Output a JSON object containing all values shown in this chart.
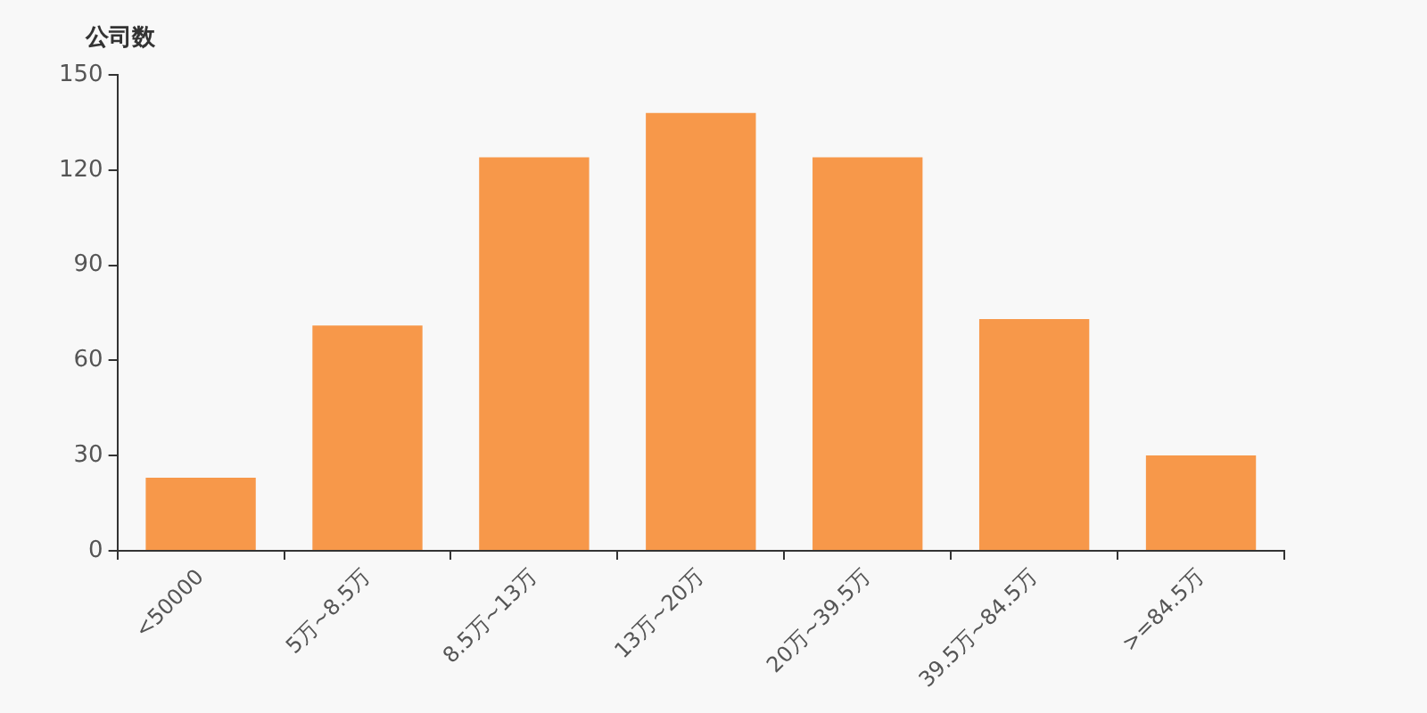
{
  "chart_data": {
    "type": "bar",
    "ylabel": "公司数",
    "categories": [
      "<50000",
      "5万~8.5万",
      "8.5万~13万",
      "13万~20万",
      "20万~39.5万",
      "39.5万~84.5万",
      ">=84.5万"
    ],
    "values": [
      23,
      71,
      124,
      138,
      124,
      73,
      30
    ],
    "color": "#f7984a",
    "ylim": [
      0,
      150
    ],
    "yticks": [
      0,
      30,
      60,
      90,
      120,
      150
    ],
    "grid": false,
    "legend": false
  }
}
